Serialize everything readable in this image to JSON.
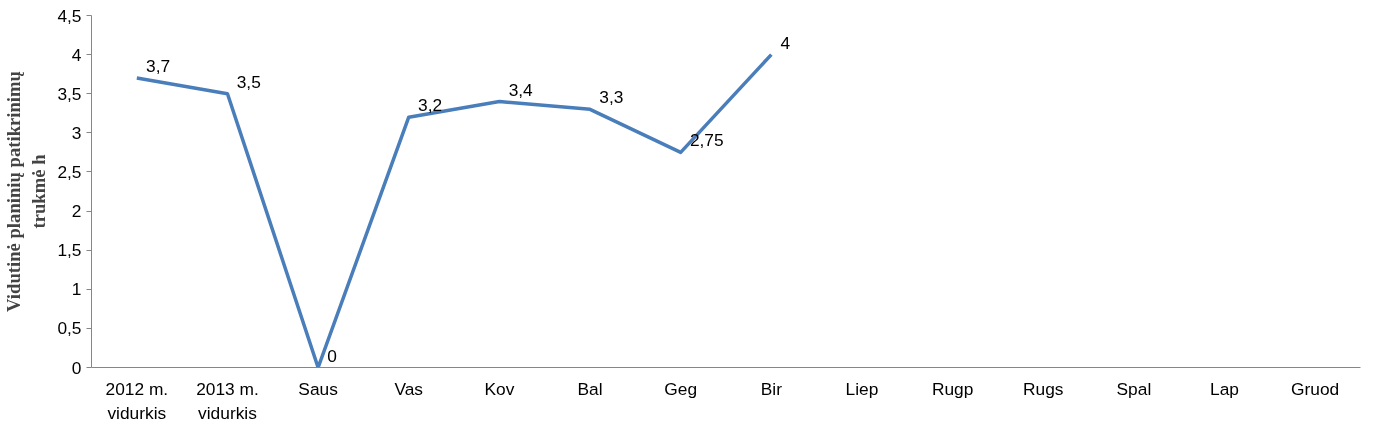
{
  "chart_data": {
    "type": "line",
    "ylabel": "Vidutinė planinių patikrinimų trukmė h",
    "categories": [
      "2012 m. vidurkis",
      "2013 m. vidurkis",
      "Saus",
      "Vas",
      "Kov",
      "Bal",
      "Geg",
      "Bir",
      "Liep",
      "Rugp",
      "Rugs",
      "Spal",
      "Lap",
      "Gruod"
    ],
    "series": [
      {
        "color": "#4a7ebb",
        "values": [
          3.7,
          3.5,
          0,
          3.2,
          3.4,
          3.3,
          2.75,
          4,
          null,
          null,
          null,
          null,
          null,
          null
        ],
        "value_labels": [
          "3,7",
          "3,5",
          "0",
          "3,2",
          "3,4",
          "3,3",
          "2,75",
          "4",
          null,
          null,
          null,
          null,
          null,
          null
        ]
      }
    ],
    "ylim": [
      0,
      4.5
    ],
    "yticks": [
      0,
      {
        "value": 0.5,
        "label": "0,5"
      },
      1,
      {
        "value": 1.5,
        "label": "1,5"
      },
      2,
      {
        "value": 2.5,
        "label": "2,5"
      },
      3,
      {
        "value": 3.5,
        "label": "3,5"
      },
      4,
      {
        "value": 4.5,
        "label": "4,5"
      }
    ],
    "grid": false,
    "marker": "none",
    "line_style": "solid"
  }
}
